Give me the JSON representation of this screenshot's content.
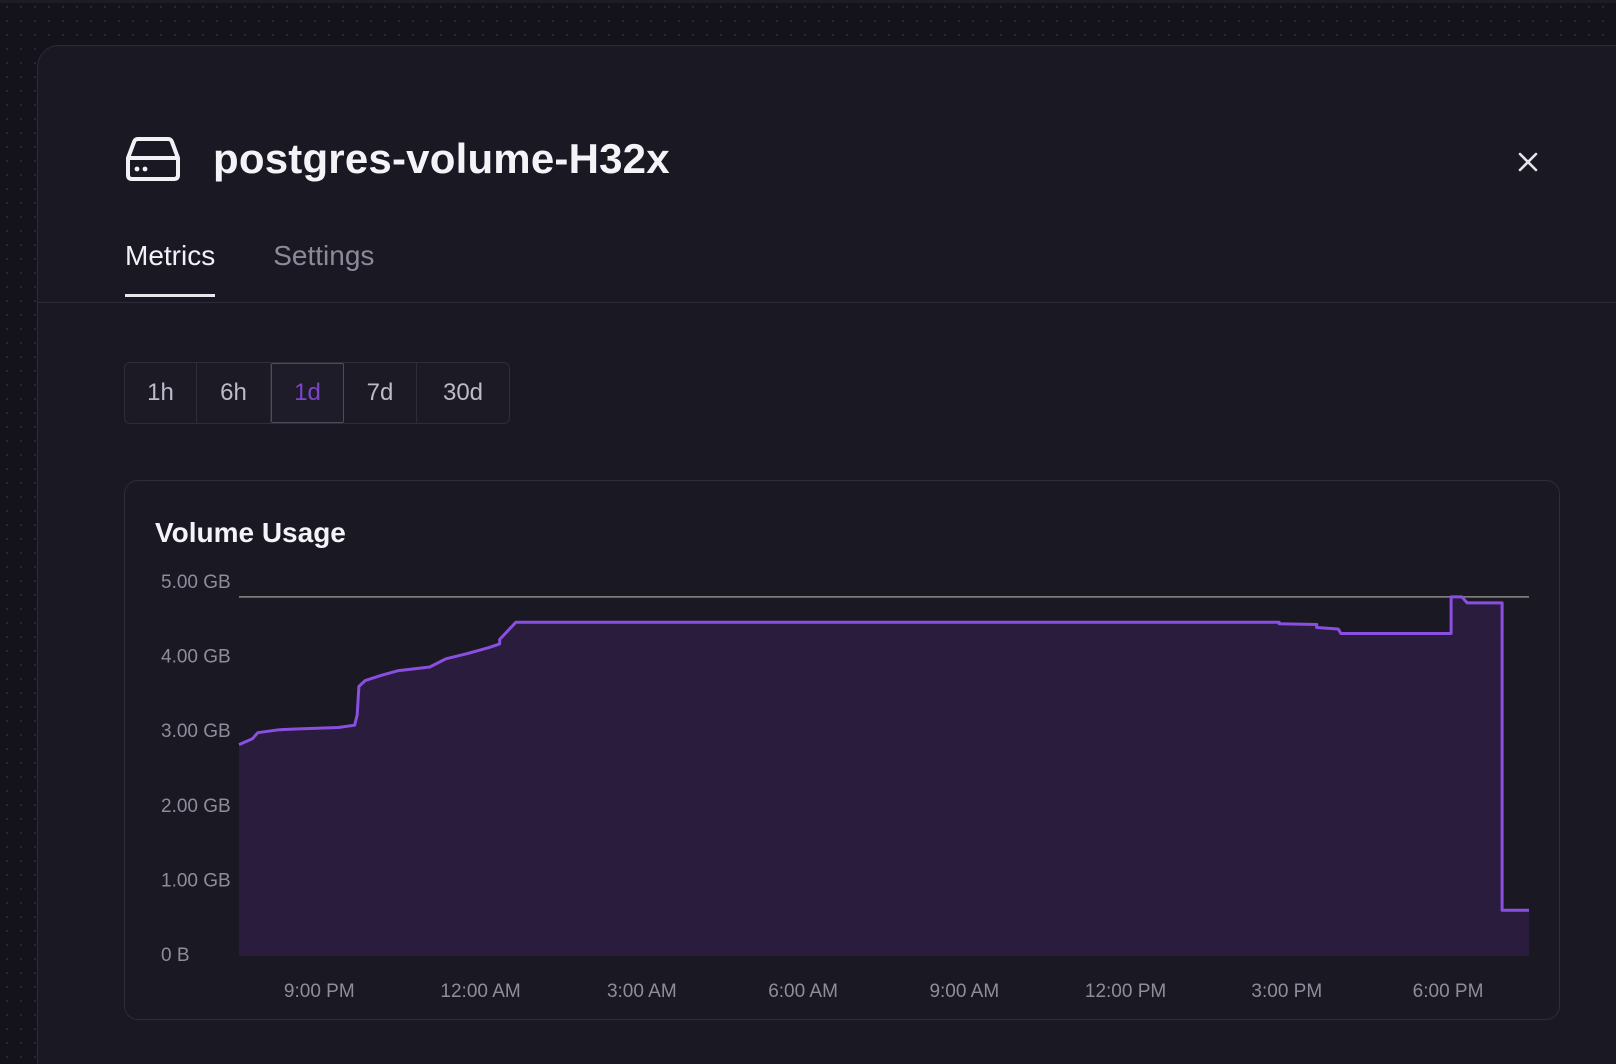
{
  "volume": {
    "name": "postgres-volume-H32x",
    "icon": "hard-drive-icon"
  },
  "close": {
    "icon": "close-icon"
  },
  "tabs": [
    {
      "label": "Metrics",
      "active": true
    },
    {
      "label": "Settings",
      "active": false
    }
  ],
  "time_ranges": {
    "options": [
      "1h",
      "6h",
      "1d",
      "7d",
      "30d"
    ],
    "selected": "1d"
  },
  "colors": {
    "accent": "#8a4fe0",
    "area_fill": "#2a1c3c",
    "limit_line": "#8c8a86",
    "background": "#191823"
  },
  "chart": {
    "title": "Volume Usage"
  },
  "chart_data": {
    "type": "area",
    "title": "Volume Usage",
    "y_unit": "GB",
    "ylim": [
      0,
      5
    ],
    "y_ticks": [
      {
        "value": 5,
        "label": "5.00 GB"
      },
      {
        "value": 4,
        "label": "4.00 GB"
      },
      {
        "value": 3,
        "label": "3.00 GB"
      },
      {
        "value": 2,
        "label": "2.00 GB"
      },
      {
        "value": 1,
        "label": "1.00 GB"
      },
      {
        "value": 0,
        "label": "0 B"
      }
    ],
    "x_ticks": [
      {
        "hour": 21,
        "label": "9:00 PM"
      },
      {
        "hour": 24,
        "label": "12:00 AM"
      },
      {
        "hour": 27,
        "label": "3:00 AM"
      },
      {
        "hour": 30,
        "label": "6:00 AM"
      },
      {
        "hour": 33,
        "label": "9:00 AM"
      },
      {
        "hour": 36,
        "label": "12:00 PM"
      },
      {
        "hour": 39,
        "label": "3:00 PM"
      },
      {
        "hour": 42,
        "label": "6:00 PM"
      }
    ],
    "xlim_hours": [
      20.25,
      44.25
    ],
    "limit": 4.8,
    "grid": false,
    "series": [
      {
        "points": [
          [
            20.25,
            2.82
          ],
          [
            20.5,
            2.9
          ],
          [
            20.6,
            2.98
          ],
          [
            21.0,
            3.02
          ],
          [
            21.3,
            3.03
          ],
          [
            22.1,
            3.05
          ],
          [
            22.4,
            3.08
          ],
          [
            22.45,
            3.22
          ],
          [
            22.48,
            3.6
          ],
          [
            22.6,
            3.68
          ],
          [
            22.9,
            3.75
          ],
          [
            23.2,
            3.81
          ],
          [
            23.8,
            3.86
          ],
          [
            24.1,
            3.97
          ],
          [
            24.5,
            4.04
          ],
          [
            24.9,
            4.12
          ],
          [
            25.1,
            4.17
          ],
          [
            25.1,
            4.23
          ],
          [
            25.4,
            4.46
          ],
          [
            30.0,
            4.46
          ],
          [
            35.0,
            4.46
          ],
          [
            39.6,
            4.46
          ],
          [
            39.6,
            4.44
          ],
          [
            40.3,
            4.43
          ],
          [
            40.3,
            4.39
          ],
          [
            40.7,
            4.37
          ],
          [
            40.75,
            4.31
          ],
          [
            42.8,
            4.31
          ],
          [
            42.8,
            4.8
          ],
          [
            43.0,
            4.8
          ],
          [
            43.1,
            4.72
          ],
          [
            43.75,
            4.72
          ],
          [
            43.75,
            0.6
          ],
          [
            44.25,
            0.6
          ]
        ]
      }
    ]
  }
}
